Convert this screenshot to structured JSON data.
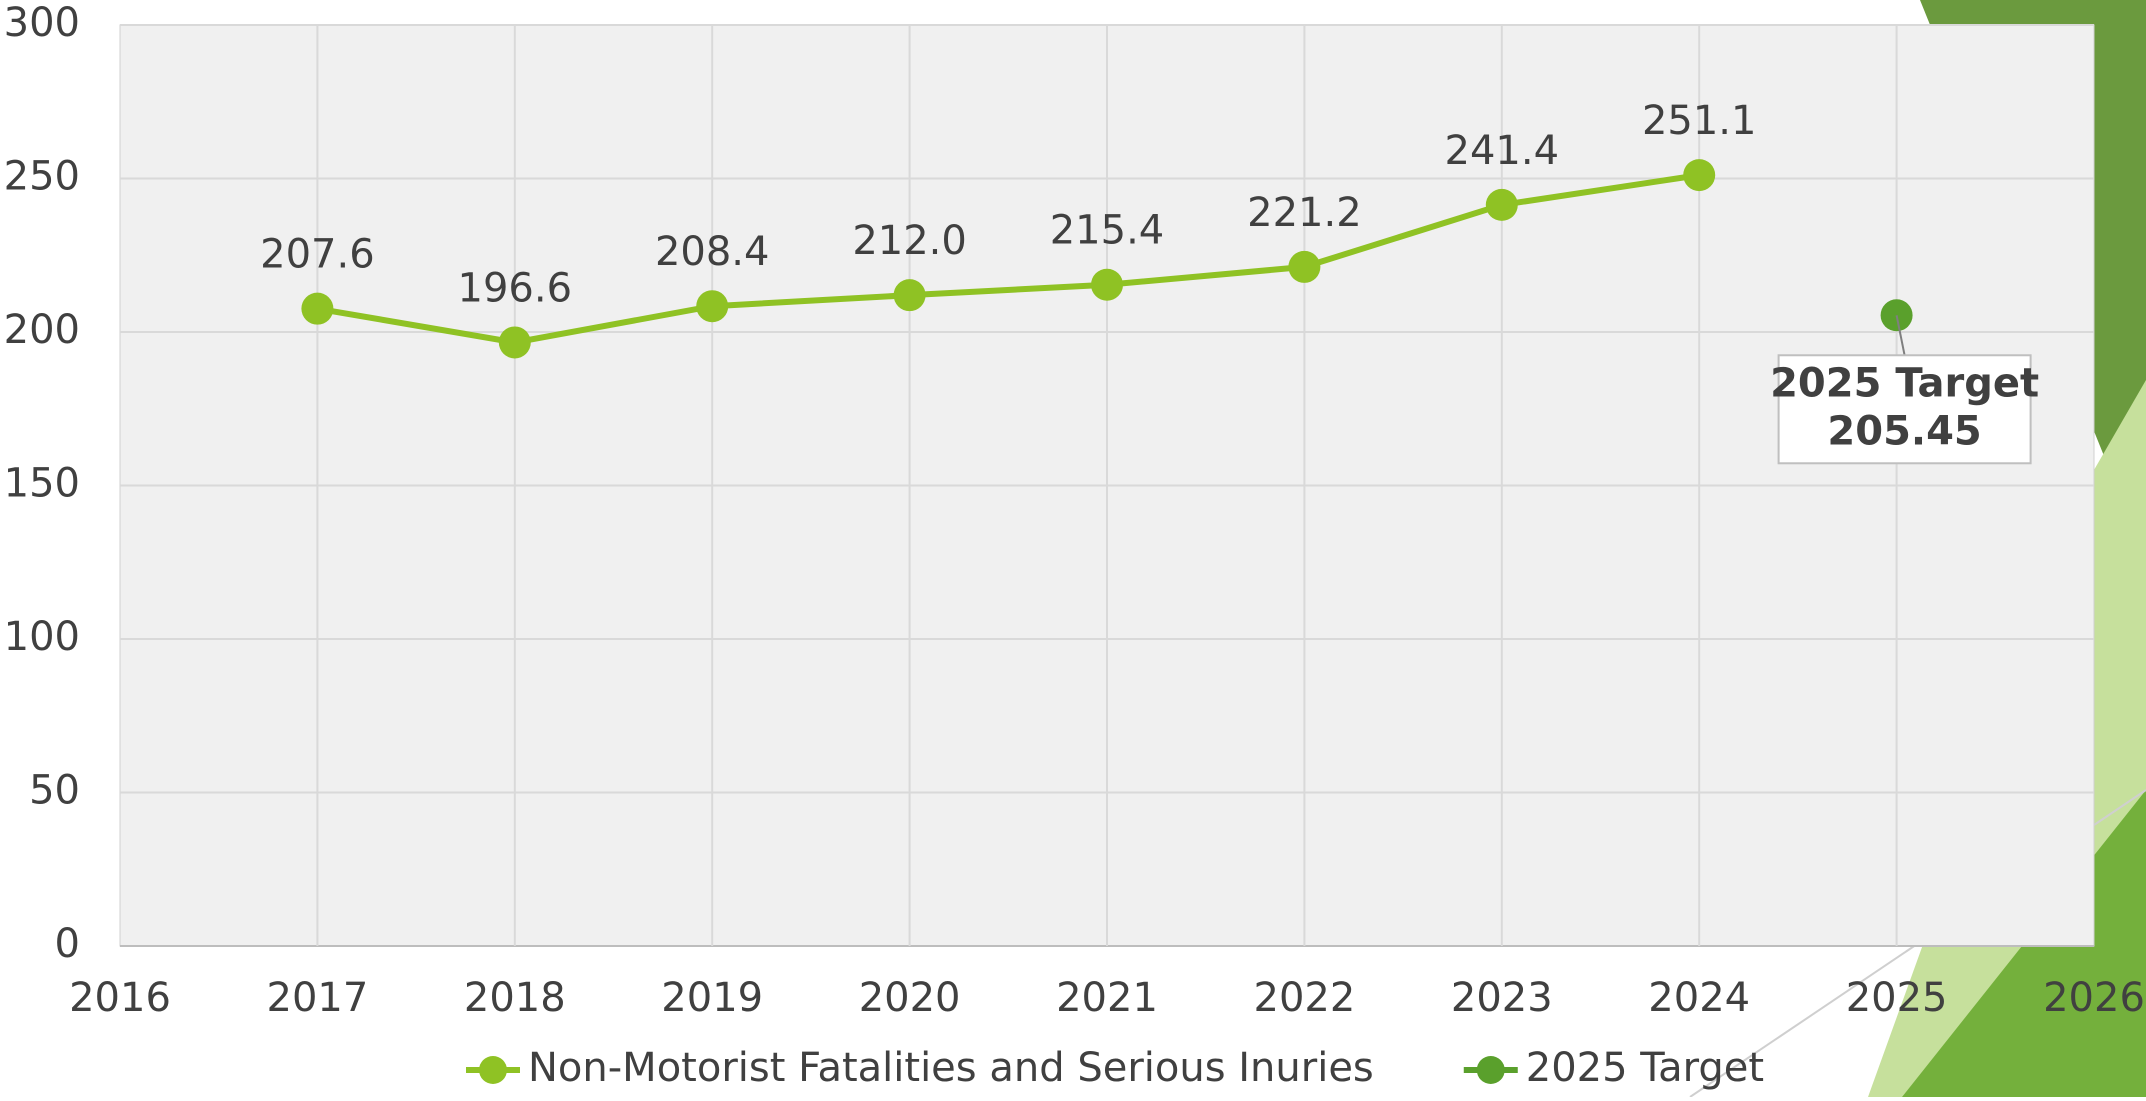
{
  "chart_data": {
    "type": "line",
    "x_label_note": null,
    "xlim": [
      2016,
      2026
    ],
    "xticks": [
      2016,
      2017,
      2018,
      2019,
      2020,
      2021,
      2022,
      2023,
      2024,
      2025,
      2026
    ],
    "ylim": [
      0,
      300
    ],
    "yticks": [
      0,
      50,
      100,
      150,
      200,
      250,
      300
    ],
    "grid": true,
    "series": [
      {
        "name": "Non-Motorist Fatalities and Serious Inuries",
        "color": "#8fc224",
        "x": [
          2017,
          2018,
          2019,
          2020,
          2021,
          2022,
          2023,
          2024
        ],
        "values": [
          207.6,
          196.6,
          208.4,
          212.0,
          215.4,
          221.2,
          241.4,
          251.1
        ],
        "value_labels": [
          "207.6",
          "196.6",
          "208.4",
          "212.0",
          "215.4",
          "221.2",
          "241.4",
          "251.1"
        ]
      },
      {
        "name": "2025 Target",
        "color": "#5aa02c",
        "x": [
          2025
        ],
        "values": [
          205.45
        ]
      }
    ],
    "legend": "bottom"
  }
}
